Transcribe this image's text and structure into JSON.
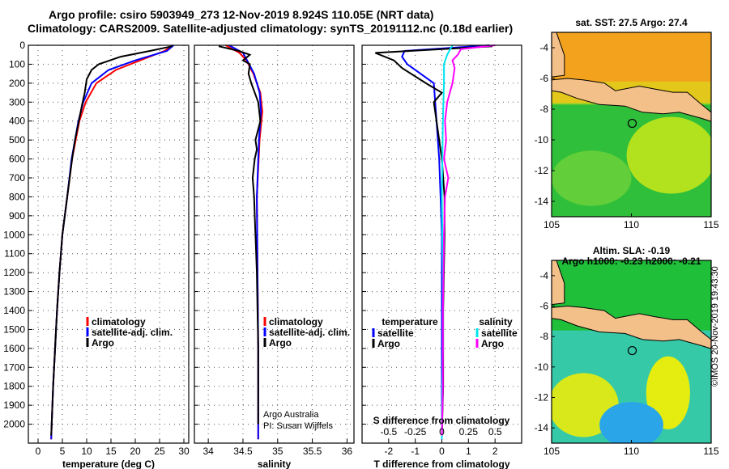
{
  "title_line1": "Argo profile: csiro 5903949_273 12-Nov-2019 8.924S 110.05E (NRT data)",
  "title_line2": "Climatology: CARS2009. Satellite-adjusted climatology: synTS_20191112.nc (0.18d earlier)",
  "watermark": "©IMOS 20-Nov-2019 19:43:30",
  "colors": {
    "climatology": "#ff0000",
    "satellite": "#0000ff",
    "argo": "#000000",
    "cyan": "#00e5ee",
    "magenta": "#ff00ff",
    "land": "#f4c089"
  },
  "chart_data": [
    {
      "type": "line",
      "panel": "temperature",
      "xlabel": "temperature (deg C)",
      "ylabel": "",
      "xlim": [
        -2,
        31
      ],
      "ylim": [
        2100,
        0
      ],
      "xticks": [
        0,
        5,
        10,
        15,
        20,
        25,
        30
      ],
      "yticks": [
        0,
        100,
        200,
        300,
        400,
        500,
        600,
        700,
        800,
        900,
        1000,
        1100,
        1200,
        1300,
        1400,
        1500,
        1600,
        1700,
        1800,
        1900,
        2000
      ],
      "legend": [
        "climatology",
        "satellite-adj. clim.",
        "Argo"
      ],
      "series": [
        {
          "name": "climatology",
          "depth": [
            0,
            30,
            80,
            130,
            200,
            300,
            400,
            600,
            800,
            1000,
            1200,
            1400,
            1600,
            1800,
            2000,
            2080
          ],
          "values": [
            27.8,
            26,
            21,
            16,
            12,
            9.8,
            8.5,
            7,
            6,
            5,
            4.4,
            3.9,
            3.5,
            3.1,
            2.8,
            2.7
          ]
        },
        {
          "name": "satellite-adj. clim.",
          "depth": [
            0,
            30,
            80,
            130,
            200,
            300,
            400,
            600,
            800,
            1000,
            1200,
            1400,
            1600,
            1800,
            2000,
            2080
          ],
          "values": [
            27.9,
            26.5,
            20,
            14.5,
            11,
            9.3,
            8.3,
            6.9,
            6,
            5,
            4.4,
            3.9,
            3.5,
            3.1,
            2.8,
            2.7
          ]
        },
        {
          "name": "Argo",
          "depth": [
            5,
            30,
            60,
            100,
            130,
            180,
            250,
            320,
            400,
            500,
            600,
            800,
            1000,
            1200,
            1400,
            1600,
            1800,
            2000,
            2060
          ],
          "values": [
            27.6,
            23,
            17,
            12.5,
            11,
            10,
            9.6,
            9,
            8.4,
            7.6,
            7,
            6,
            5,
            4.4,
            3.9,
            3.5,
            3.1,
            2.8,
            2.7
          ]
        }
      ]
    },
    {
      "type": "line",
      "panel": "salinity",
      "xlabel": "salinity",
      "xlim": [
        33.8,
        36.1
      ],
      "ylim": [
        2100,
        0
      ],
      "xticks": [
        34,
        34.5,
        35,
        35.5,
        36
      ],
      "legend": [
        "climatology",
        "satellite-adj. clim.",
        "Argo"
      ],
      "annotations": [
        "Argo Australia",
        "PI: Susan Wijffels"
      ],
      "series": [
        {
          "name": "climatology",
          "depth": [
            0,
            40,
            80,
            150,
            250,
            350,
            500,
            800,
            1200,
            1600,
            2000,
            2080
          ],
          "values": [
            34.25,
            34.45,
            34.55,
            34.65,
            34.75,
            34.78,
            34.74,
            34.7,
            34.71,
            34.72,
            34.72,
            34.72
          ]
        },
        {
          "name": "satellite-adj. clim.",
          "depth": [
            0,
            40,
            80,
            150,
            250,
            350,
            500,
            800,
            1200,
            1600,
            2000,
            2080
          ],
          "values": [
            34.3,
            34.5,
            34.56,
            34.66,
            34.74,
            34.76,
            34.73,
            34.7,
            34.71,
            34.72,
            34.72,
            34.72
          ]
        },
        {
          "name": "Argo",
          "depth": [
            5,
            30,
            50,
            80,
            100,
            150,
            200,
            300,
            400,
            500,
            550,
            600,
            700,
            800,
            900,
            1000,
            1200,
            1400,
            1600,
            1800,
            2000
          ],
          "values": [
            34.15,
            34.44,
            34.6,
            34.5,
            34.6,
            34.58,
            34.62,
            34.72,
            34.75,
            34.68,
            34.7,
            34.67,
            34.64,
            34.66,
            34.67,
            34.68,
            34.7,
            34.71,
            34.72,
            34.72,
            34.72
          ]
        }
      ]
    },
    {
      "type": "line",
      "panel": "difference",
      "xlabel": "T difference from climatology",
      "xlabel2": "S difference from climatology",
      "xlim": [
        -3,
        3
      ],
      "ylim": [
        2100,
        0
      ],
      "xticks": [
        -2,
        -1,
        0,
        1,
        2
      ],
      "xticklabels": [
        "-2",
        "-1",
        "0",
        "1",
        "2"
      ],
      "xticks_s": [
        -0.5,
        -0.25,
        0,
        0.25,
        0.5
      ],
      "xticklabels_s": [
        "-0.5",
        "-0.25",
        "0",
        "0.25",
        "0.5"
      ],
      "legend_left_title": "temperature",
      "legend_right_title": "salinity",
      "legend_left": [
        "satellite",
        "Argo"
      ],
      "legend_right": [
        "satellite",
        "Argo"
      ],
      "series": [
        {
          "name": "T satellite",
          "depth": [
            0,
            30,
            60,
            100,
            200,
            400,
            600,
            800,
            1000,
            1400,
            1800,
            2080
          ],
          "values": [
            1.8,
            -1.4,
            -1.5,
            -1.3,
            -0.3,
            -0.2,
            -0.1,
            -0.05,
            0,
            0,
            0,
            0
          ]
        },
        {
          "name": "T Argo",
          "depth": [
            5,
            40,
            80,
            120,
            200,
            250,
            300,
            400,
            500,
            600,
            800,
            1000,
            1400,
            1800,
            2060
          ],
          "values": [
            1.9,
            -2.5,
            -1.8,
            -1.5,
            -0.6,
            0,
            -0.3,
            -0.2,
            -0.1,
            0,
            0.1,
            0.1,
            0.05,
            0.05,
            0
          ]
        },
        {
          "name": "S satellite",
          "depth": [
            0,
            50,
            100,
            200,
            400,
            800,
            1200,
            1600,
            2000,
            2080
          ],
          "values": [
            0.1,
            0.05,
            0.02,
            0.02,
            0.01,
            0,
            0.01,
            0.01,
            0,
            0
          ]
        },
        {
          "name": "S Argo",
          "depth": [
            0,
            20,
            50,
            80,
            120,
            200,
            300,
            400,
            500,
            600,
            700,
            800,
            1000,
            1400,
            1800,
            2060
          ],
          "values": [
            0.5,
            0.18,
            0.15,
            0.1,
            0.12,
            0.1,
            0.05,
            0.03,
            0.04,
            0.02,
            0.06,
            0.03,
            0.02,
            0.01,
            0.01,
            0
          ]
        }
      ]
    },
    {
      "type": "heatmap",
      "panel": "sst_map",
      "title": "sat. SST: 27.5 Argo: 27.4",
      "xlim": [
        105,
        115
      ],
      "ylim": [
        -15,
        -3
      ],
      "xticks": [
        105,
        110,
        115
      ],
      "yticks": [
        -4,
        -6,
        -8,
        -10,
        -12,
        -14
      ],
      "float_position": [
        110.05,
        -8.924
      ]
    },
    {
      "type": "heatmap",
      "panel": "sla_map",
      "title": "Altim. SLA: -0.19",
      "subtitle": "Argo h1000: -0.23 h2000: -0.21",
      "xlim": [
        105,
        115
      ],
      "ylim": [
        -15,
        -3
      ],
      "xticks": [
        105,
        110,
        115
      ],
      "yticks": [
        -4,
        -6,
        -8,
        -10,
        -12,
        -14
      ],
      "float_position": [
        110.05,
        -8.924
      ]
    }
  ]
}
